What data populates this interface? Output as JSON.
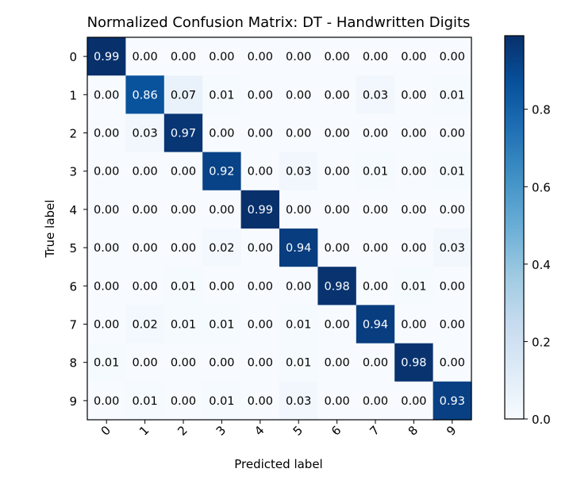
{
  "chart_data": {
    "type": "heatmap",
    "title": "Normalized Confusion Matrix: DT - Handwritten Digits",
    "xlabel": "Predicted label",
    "ylabel": "True label",
    "x_categories": [
      "0",
      "1",
      "2",
      "3",
      "4",
      "5",
      "6",
      "7",
      "8",
      "9"
    ],
    "y_categories": [
      "0",
      "1",
      "2",
      "3",
      "4",
      "5",
      "6",
      "7",
      "8",
      "9"
    ],
    "values": [
      [
        0.99,
        0.0,
        0.0,
        0.0,
        0.0,
        0.0,
        0.0,
        0.0,
        0.0,
        0.0
      ],
      [
        0.0,
        0.86,
        0.07,
        0.01,
        0.0,
        0.0,
        0.0,
        0.03,
        0.0,
        0.01
      ],
      [
        0.0,
        0.03,
        0.97,
        0.0,
        0.0,
        0.0,
        0.0,
        0.0,
        0.0,
        0.0
      ],
      [
        0.0,
        0.0,
        0.0,
        0.92,
        0.0,
        0.03,
        0.0,
        0.01,
        0.0,
        0.01
      ],
      [
        0.0,
        0.0,
        0.0,
        0.0,
        0.99,
        0.0,
        0.0,
        0.0,
        0.0,
        0.0
      ],
      [
        0.0,
        0.0,
        0.0,
        0.02,
        0.0,
        0.94,
        0.0,
        0.0,
        0.0,
        0.03
      ],
      [
        0.0,
        0.0,
        0.01,
        0.0,
        0.0,
        0.0,
        0.98,
        0.0,
        0.01,
        0.0
      ],
      [
        0.0,
        0.02,
        0.01,
        0.01,
        0.0,
        0.01,
        0.0,
        0.94,
        0.0,
        0.0
      ],
      [
        0.01,
        0.0,
        0.0,
        0.0,
        0.0,
        0.01,
        0.0,
        0.0,
        0.98,
        0.0
      ],
      [
        0.0,
        0.01,
        0.0,
        0.01,
        0.0,
        0.03,
        0.0,
        0.0,
        0.0,
        0.93
      ]
    ],
    "colormap": "Blues",
    "colorbar": {
      "min": 0.0,
      "max": 0.99,
      "ticks": [
        0.0,
        0.2,
        0.4,
        0.6,
        0.8
      ],
      "tick_labels": [
        "0.0",
        "0.2",
        "0.4",
        "0.6",
        "0.8"
      ]
    },
    "text_colors": {
      "light": "#ffffff",
      "dark": "#000000"
    }
  }
}
